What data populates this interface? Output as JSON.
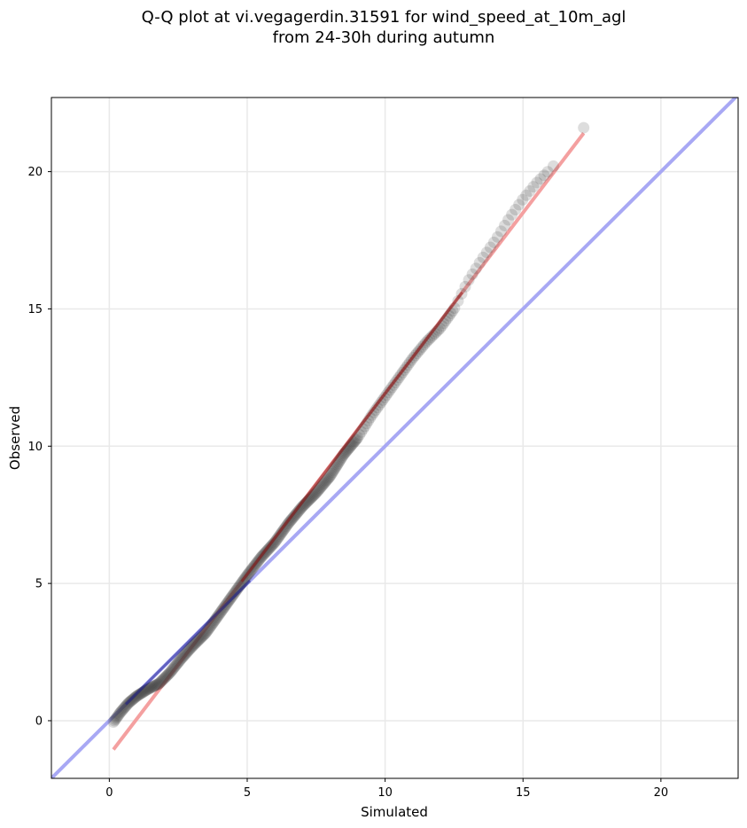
{
  "title_line1": "Q-Q plot at vi.vegagerdin.31591 for wind_speed_at_10m_agl",
  "title_line2": "from 24-30h during autumn",
  "chart_data": {
    "type": "scatter",
    "title": "Q-Q plot at vi.vegagerdin.31591 for wind_speed_at_10m_agl from 24-30h during autumn",
    "xlabel": "Simulated",
    "ylabel": "Observed",
    "xlim": [
      -2.1,
      22.8
    ],
    "ylim": [
      -2.1,
      22.7
    ],
    "xticks": [
      0,
      5,
      10,
      15,
      20
    ],
    "yticks": [
      0,
      5,
      10,
      15,
      20
    ],
    "grid": true,
    "colors": {
      "points": "#333333",
      "fit_line": "#f4a0a0",
      "identity_line": "#a8a8f4",
      "dark_red": "#8b1010",
      "dark_blue": "#1a1a8c"
    },
    "quantile_curve": [
      [
        0.15,
        -0.05
      ],
      [
        0.4,
        0.3
      ],
      [
        0.7,
        0.65
      ],
      [
        1.0,
        0.9
      ],
      [
        1.4,
        1.15
      ],
      [
        1.8,
        1.35
      ],
      [
        2.2,
        1.75
      ],
      [
        2.6,
        2.25
      ],
      [
        3.0,
        2.7
      ],
      [
        3.5,
        3.2
      ],
      [
        4.0,
        3.9
      ],
      [
        4.5,
        4.6
      ],
      [
        5.0,
        5.3
      ],
      [
        5.5,
        5.95
      ],
      [
        6.0,
        6.5
      ],
      [
        6.5,
        7.2
      ],
      [
        7.0,
        7.8
      ],
      [
        7.5,
        8.3
      ],
      [
        8.0,
        8.9
      ],
      [
        8.5,
        9.7
      ],
      [
        9.0,
        10.3
      ],
      [
        9.5,
        11.1
      ],
      [
        10.0,
        11.8
      ],
      [
        10.5,
        12.5
      ],
      [
        11.0,
        13.2
      ],
      [
        11.5,
        13.8
      ],
      [
        12.0,
        14.3
      ],
      [
        12.5,
        15.0
      ],
      [
        13.0,
        16.0
      ],
      [
        13.5,
        16.8
      ],
      [
        14.0,
        17.5
      ],
      [
        14.5,
        18.3
      ],
      [
        15.0,
        19.0
      ],
      [
        15.5,
        19.6
      ],
      [
        16.1,
        20.2
      ],
      [
        17.2,
        21.6
      ]
    ],
    "fit_line": {
      "x": [
        0.15,
        17.2
      ],
      "y": [
        -1.05,
        21.4
      ]
    },
    "identity_line": {
      "x": [
        -2.1,
        22.8
      ],
      "y": [
        -2.1,
        22.8
      ]
    }
  }
}
